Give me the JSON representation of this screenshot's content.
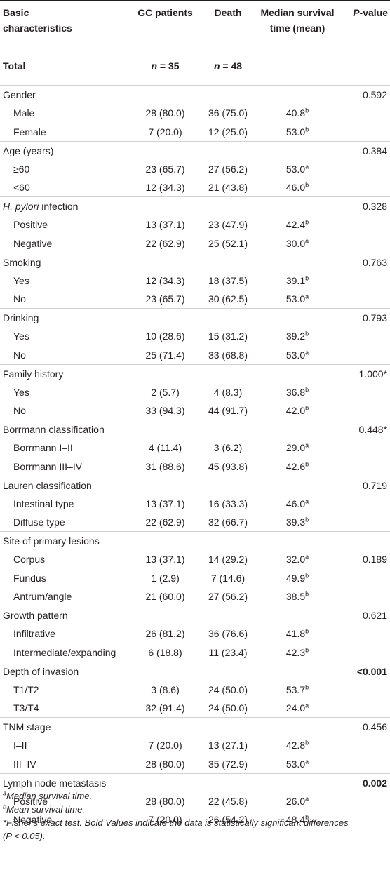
{
  "header": {
    "col0_line1": "Basic",
    "col0_line2": "characteristics",
    "col1": "GC patients",
    "col2": "Death",
    "col3_line1": "Median survival",
    "col3_line2": "time (mean)",
    "col4_italic": "P",
    "col4_rest": "-value"
  },
  "total": {
    "label": "Total",
    "gc_italic": "n",
    "gc_rest": " = 35",
    "death_italic": "n",
    "death_rest": " = 48"
  },
  "rows": [
    {
      "label": "Gender",
      "p": "0.592"
    },
    {
      "label": "Male",
      "gc": "28 (80.0)",
      "death": "36 (75.0)",
      "median": "40.8",
      "sup": "b"
    },
    {
      "label": "Female",
      "gc": "7 (20.0)",
      "death": "12 (25.0)",
      "median": "53.0",
      "sup": "b"
    },
    {
      "label": "Age (years)",
      "p": "0.384"
    },
    {
      "label": "≥60",
      "gc": "23 (65.7)",
      "death": "27 (56.2)",
      "median": "53.0",
      "sup": "a"
    },
    {
      "label": "<60",
      "gc": "12 (34.3)",
      "death": "21 (43.8)",
      "median": "46.0",
      "sup": "b"
    },
    {
      "label_italic": "H. pylori",
      "label_rest": " infection",
      "p": "0.328"
    },
    {
      "label": "Positive",
      "gc": "13 (37.1)",
      "death": "23 (47.9)",
      "median": "42.4",
      "sup": "b"
    },
    {
      "label": "Negative",
      "gc": "22 (62.9)",
      "death": "25 (52.1)",
      "median": "30.0",
      "sup": "a"
    },
    {
      "label": "Smoking",
      "p": "0.763"
    },
    {
      "label": "Yes",
      "gc": "12 (34.3)",
      "death": "18 (37.5)",
      "median": "39.1",
      "sup": "b"
    },
    {
      "label": "No",
      "gc": "23 (65.7)",
      "death": "30 (62.5)",
      "median": "53.0",
      "sup": "a"
    },
    {
      "label": "Drinking",
      "p": "0.793"
    },
    {
      "label": "Yes",
      "gc": "10 (28.6)",
      "death": "15 (31.2)",
      "median": "39.2",
      "sup": "b"
    },
    {
      "label": "No",
      "gc": "25 (71.4)",
      "death": "33 (68.8)",
      "median": "53.0",
      "sup": "a"
    },
    {
      "label": "Family history",
      "p": "1.000*"
    },
    {
      "label": "Yes",
      "gc": "2 (5.7)",
      "death": "4 (8.3)",
      "median": "36.8",
      "sup": "b"
    },
    {
      "label": "No",
      "gc": "33 (94.3)",
      "death": "44 (91.7)",
      "median": "42.0",
      "sup": "b"
    },
    {
      "label": "Borrmann classification",
      "p": "0.448*"
    },
    {
      "label": "Borrmann I–II",
      "gc": "4 (11.4)",
      "death": "3 (6.2)",
      "median": "29.0",
      "sup": "a"
    },
    {
      "label": "Borrmann III–IV",
      "gc": "31 (88.6)",
      "death": "45 (93.8)",
      "median": "42.6",
      "sup": "b"
    },
    {
      "label": "Lauren classification",
      "p": "0.719"
    },
    {
      "label": "Intestinal type",
      "gc": "13 (37.1)",
      "death": "16 (33.3)",
      "median": "46.0",
      "sup": "a"
    },
    {
      "label": "Diffuse type",
      "gc": "22 (62.9)",
      "death": "32 (66.7)",
      "median": "39.3",
      "sup": "b"
    },
    {
      "label": "Site of primary lesions"
    },
    {
      "label": "Corpus",
      "gc": "13 (37.1)",
      "death": "14 (29.2)",
      "median": "32.0",
      "sup": "a",
      "p": "0.189"
    },
    {
      "label": "Fundus",
      "gc": "1 (2.9)",
      "death": "7 (14.6)",
      "median": "49.9",
      "sup": "b"
    },
    {
      "label": "Antrum/angle",
      "gc": "21 (60.0)",
      "death": "27 (56.2)",
      "median": "38.5",
      "sup": "b"
    },
    {
      "label": "Growth pattern",
      "p": "0.621"
    },
    {
      "label": "Infiltrative",
      "gc": "26 (81.2)",
      "death": "36 (76.6)",
      "median": "41.8",
      "sup": "b"
    },
    {
      "label": "Intermediate/expanding",
      "gc": "6 (18.8)",
      "death": "11 (23.4)",
      "median": "42.3",
      "sup": "b"
    },
    {
      "label": "Depth of invasion",
      "p": "<0.001",
      "p_bold": true
    },
    {
      "label": "T1/T2",
      "gc": "3 (8.6)",
      "death": "24 (50.0)",
      "median": "53.7",
      "sup": "b"
    },
    {
      "label": "T3/T4",
      "gc": "32 (91.4)",
      "death": "24 (50.0)",
      "median": "24.0",
      "sup": "a"
    },
    {
      "label": "TNM stage",
      "p": "0.456"
    },
    {
      "label": "I–II",
      "gc": "7 (20.0)",
      "death": "13 (27.1)",
      "median": "42.8",
      "sup": "b"
    },
    {
      "label": "III–IV",
      "gc": "28 (80.0)",
      "death": "35 (72.9)",
      "median": "53.0",
      "sup": "a"
    },
    {
      "label": "Lymph node metastasis",
      "p": "0.002",
      "p_bold": true
    },
    {
      "label": "Positive",
      "gc": "28 (80.0)",
      "death": "22 (45.8)",
      "median": "26.0",
      "sup": "a"
    },
    {
      "label": "Negative",
      "gc": "7 (20.0)",
      "death": "26 (54.2)",
      "median": "48.4",
      "sup": "b"
    }
  ],
  "footnotes": {
    "a_mark": "a",
    "a_text": "Median survival time.",
    "b_mark": "b",
    "b_text": "Mean survival time.",
    "star_text": "*Fisher's exact test. Bold Values indicate the data is statistically significant differences",
    "star_paren_open": "(",
    "star_p": "P",
    "star_paren_rest": " < 0.05)."
  }
}
